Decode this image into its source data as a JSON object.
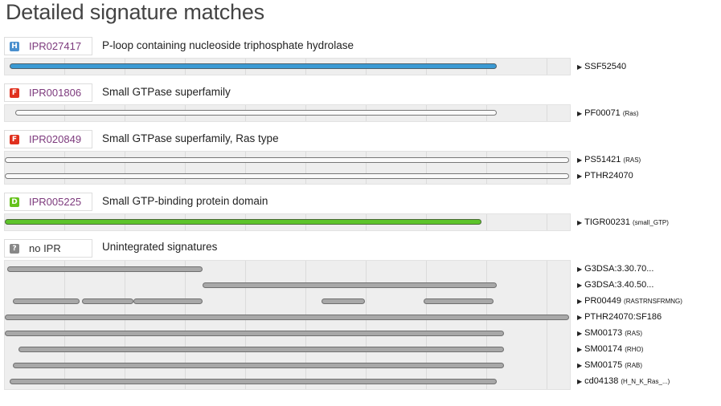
{
  "page": {
    "title": "Detailed signature matches"
  },
  "colors": {
    "homologous_superfamily_badge": "#4a8fce",
    "family_badge": "#e0301e",
    "domain_badge": "#66c21b",
    "unintegrated_badge": "#888888",
    "blue_match": "#3a9ad4",
    "green_match": "#5dc42a",
    "grey_match": "#a8a8a8",
    "ipr_link": "#7d3a7d"
  },
  "entries": [
    {
      "badge": "H",
      "ipr": "IPR027417",
      "description": "P-loop containing nucleoside triphosphate hydrolase",
      "signatures": [
        {
          "id": "SSF52540",
          "sub": ""
        }
      ]
    },
    {
      "badge": "F",
      "ipr": "IPR001806",
      "description": "Small GTPase superfamily",
      "signatures": [
        {
          "id": "PF00071",
          "sub": "(Ras)"
        }
      ]
    },
    {
      "badge": "F",
      "ipr": "IPR020849",
      "description": "Small GTPase superfamily, Ras type",
      "signatures": [
        {
          "id": "PS51421",
          "sub": "(RAS)"
        },
        {
          "id": "PTHR24070",
          "sub": ""
        }
      ]
    },
    {
      "badge": "D",
      "ipr": "IPR005225",
      "description": "Small GTP-binding protein domain",
      "signatures": [
        {
          "id": "TIGR00231",
          "sub": "(small_GTP)"
        }
      ]
    },
    {
      "badge": "?",
      "ipr": "no IPR",
      "description": "Unintegrated signatures",
      "signatures": [
        {
          "id": "G3DSA:3.30.70...",
          "sub": ""
        },
        {
          "id": "G3DSA:3.40.50...",
          "sub": ""
        },
        {
          "id": "PR00449",
          "sub": "(RASTRNSFRMNG)"
        },
        {
          "id": "PTHR24070:SF186",
          "sub": ""
        },
        {
          "id": "SM00173",
          "sub": "(RAS)"
        },
        {
          "id": "SM00174",
          "sub": "(RHO)"
        },
        {
          "id": "SM00175",
          "sub": "(RAB)"
        },
        {
          "id": "cd04138",
          "sub": "(H_N_K_Ras_...)"
        }
      ]
    }
  ]
}
